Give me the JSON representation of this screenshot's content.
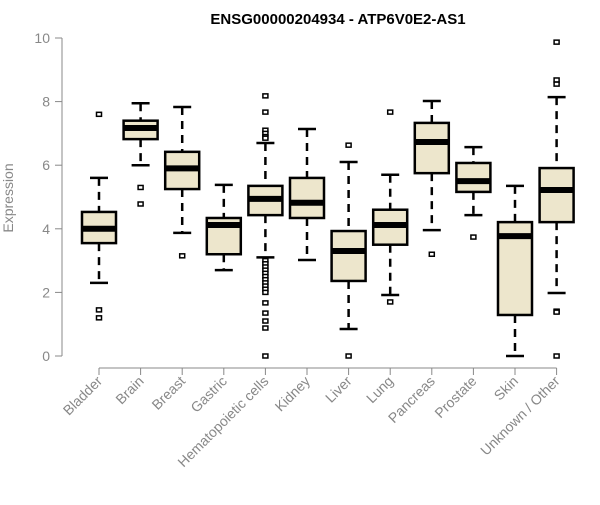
{
  "chart_data": {
    "type": "boxplot",
    "title": "ENSG00000204934 - ATP6V0E2-AS1",
    "xlabel": "",
    "ylabel": "Expression",
    "ylim": [
      0,
      10
    ],
    "yticks": [
      "0",
      "2",
      "4",
      "6",
      "8",
      "10"
    ],
    "ytick_values": [
      0,
      2,
      4,
      6,
      8,
      10
    ],
    "box_fill": "#ede6cc",
    "categories": [
      "Bladder",
      "Brain",
      "Breast",
      "Gastric",
      "Hematopoietic cells",
      "Kidney",
      "Liver",
      "Lung",
      "Pancreas",
      "Prostate",
      "Skin",
      "Unknown / Other"
    ],
    "boxes": [
      {
        "low": 2.3,
        "q1": 3.55,
        "median": 4.0,
        "q3": 4.53,
        "high": 5.6,
        "outliers": [
          7.6,
          1.45,
          1.2
        ]
      },
      {
        "low": 6.0,
        "q1": 6.82,
        "median": 7.17,
        "q3": 7.4,
        "high": 7.95,
        "outliers": [
          5.3,
          4.78
        ]
      },
      {
        "low": 3.87,
        "q1": 5.25,
        "median": 5.9,
        "q3": 6.42,
        "high": 7.83,
        "outliers": [
          3.15
        ]
      },
      {
        "low": 2.7,
        "q1": 3.2,
        "median": 4.12,
        "q3": 4.34,
        "high": 5.38,
        "outliers": []
      },
      {
        "low": 3.1,
        "q1": 4.43,
        "median": 4.94,
        "q3": 5.35,
        "high": 6.7,
        "outliers": [
          8.18,
          7.67,
          7.1,
          7.0,
          6.9,
          6.85,
          3.0,
          2.9,
          2.8,
          2.7,
          2.6,
          2.5,
          2.4,
          2.3,
          2.2,
          2.1,
          2.0,
          1.67,
          1.35,
          1.1,
          0.88,
          0
        ]
      },
      {
        "low": 3.02,
        "q1": 4.34,
        "median": 4.82,
        "q3": 5.6,
        "high": 7.14,
        "outliers": []
      },
      {
        "low": 0.85,
        "q1": 2.36,
        "median": 3.3,
        "q3": 3.93,
        "high": 6.1,
        "outliers": [
          6.63,
          0
        ]
      },
      {
        "low": 1.92,
        "q1": 3.5,
        "median": 4.12,
        "q3": 4.6,
        "high": 5.7,
        "outliers": [
          7.67,
          1.7
        ]
      },
      {
        "low": 3.96,
        "q1": 5.75,
        "median": 6.73,
        "q3": 7.33,
        "high": 8.02,
        "outliers": [
          3.2
        ]
      },
      {
        "low": 4.43,
        "q1": 5.16,
        "median": 5.5,
        "q3": 6.07,
        "high": 6.57,
        "outliers": [
          3.74
        ]
      },
      {
        "low": 0,
        "q1": 1.29,
        "median": 3.77,
        "q3": 4.21,
        "high": 5.35,
        "outliers": []
      },
      {
        "low": 1.98,
        "q1": 4.21,
        "median": 5.22,
        "q3": 5.91,
        "high": 8.14,
        "outliers": [
          9.87,
          8.68,
          8.55,
          1.41,
          1.38,
          0
        ]
      }
    ]
  }
}
